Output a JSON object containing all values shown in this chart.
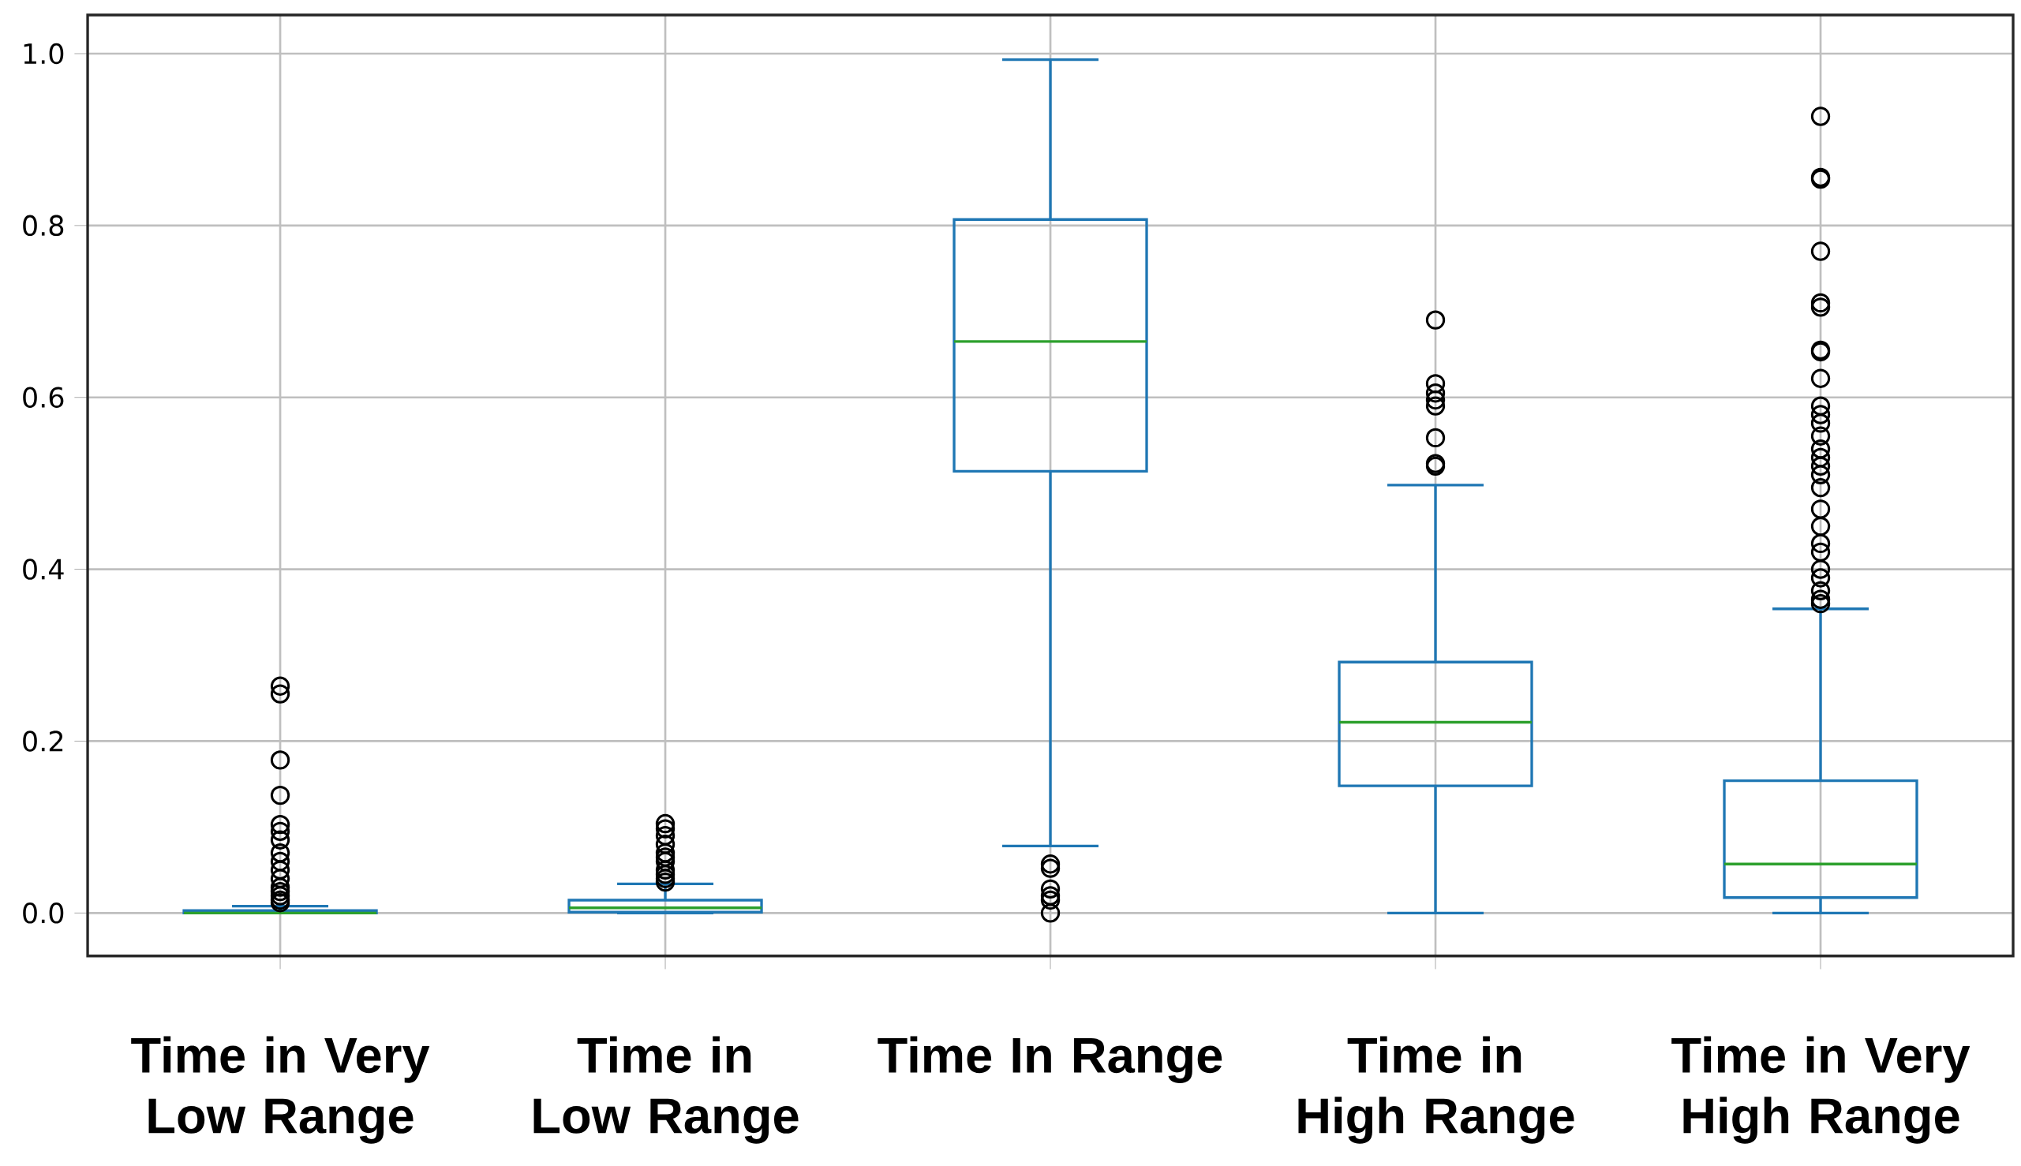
{
  "chart_data": {
    "type": "box",
    "categories": [
      "Time in Very Low Range",
      "Time in Low Range",
      "Time In Range",
      "Time in High Range",
      "Time in Very High Range"
    ],
    "series": [
      {
        "color": "#1f77b4",
        "boxes": [
          {
            "low": 0,
            "q1": 0,
            "median": 0,
            "q3": 0.003,
            "high": 0.008,
            "outliers": [
              0.264,
              0.255,
              0.178,
              0.137,
              0.103,
              0.095,
              0.085,
              0.07,
              0.06,
              0.05,
              0.04,
              0.03,
              0.025,
              0.02,
              0.015,
              0.012
            ]
          },
          {
            "low": 0,
            "q1": 0.001,
            "median": 0.006,
            "q3": 0.015,
            "high": 0.034,
            "outliers": [
              0.104,
              0.098,
              0.09,
              0.08,
              0.07,
              0.065,
              0.06,
              0.05,
              0.045,
              0.04,
              0.036
            ]
          },
          {
            "low": 0.078,
            "q1": 0.514,
            "median": 0.665,
            "q3": 0.807,
            "high": 0.993,
            "outliers": [
              0.057,
              0.052,
              0.028,
              0.02,
              0.015,
              0
            ]
          },
          {
            "low": 0,
            "q1": 0.148,
            "median": 0.222,
            "q3": 0.292,
            "high": 0.498,
            "outliers": [
              0.69,
              0.616,
              0.605,
              0.597,
              0.59,
              0.553,
              0.523,
              0.52
            ]
          },
          {
            "low": 0,
            "q1": 0.018,
            "median": 0.057,
            "q3": 0.154,
            "high": 0.354,
            "outliers": [
              0.927,
              0.856,
              0.854,
              0.77,
              0.71,
              0.705,
              0.655,
              0.653,
              0.622,
              0.59,
              0.58,
              0.57,
              0.555,
              0.54,
              0.53,
              0.52,
              0.51,
              0.495,
              0.47,
              0.45,
              0.43,
              0.42,
              0.4,
              0.39,
              0.375,
              0.365,
              0.36
            ]
          }
        ]
      }
    ],
    "ylim": [
      -0.05,
      1.045
    ],
    "yticks": [
      {
        "value": 0,
        "label": "0.0"
      },
      {
        "value": 0.2,
        "label": "0.2"
      },
      {
        "value": 0.4,
        "label": "0.4"
      },
      {
        "value": 0.6,
        "label": "0.6"
      },
      {
        "value": 0.8,
        "label": "0.8"
      },
      {
        "value": 1.0,
        "label": "1.0"
      }
    ],
    "grid": true,
    "marker": "circle"
  }
}
